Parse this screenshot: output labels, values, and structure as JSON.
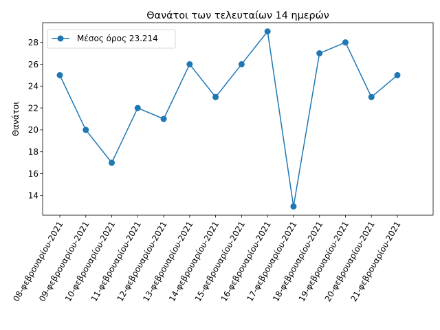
{
  "chart_data": {
    "type": "line",
    "title": "Θανάτοι των τελευταίων 14 ημερών",
    "xlabel": "",
    "ylabel": "Θανάτοι",
    "categories": [
      "08-φεβρουαρίου-2021",
      "09-φεβρουαρίου-2021",
      "10-φεβρουαρίου-2021",
      "11-φεβρουαρίου-2021",
      "12-φεβρουαρίου-2021",
      "13-φεβρουαρίου-2021",
      "14-φεβρουαρίου-2021",
      "15-φεβρουαρίου-2021",
      "16-φεβρουαρίου-2021",
      "17-φεβρουαρίου-2021",
      "18-φεβρουαρίου-2021",
      "19-φεβρουαρίου-2021",
      "20-φεβρουαρίου-2021",
      "21-φεβρουαρίου-2021"
    ],
    "series": [
      {
        "name": "Μέσος όρος 23.214",
        "values": [
          25,
          20,
          17,
          22,
          21,
          26,
          23,
          26,
          29,
          13,
          27,
          28,
          23,
          25
        ],
        "color": "#1f77b4"
      }
    ],
    "ylim": [
      12.2,
      29.8
    ],
    "yticks": [
      14,
      16,
      18,
      20,
      22,
      24,
      26,
      28
    ],
    "grid": false,
    "legend_position": "upper-left"
  }
}
